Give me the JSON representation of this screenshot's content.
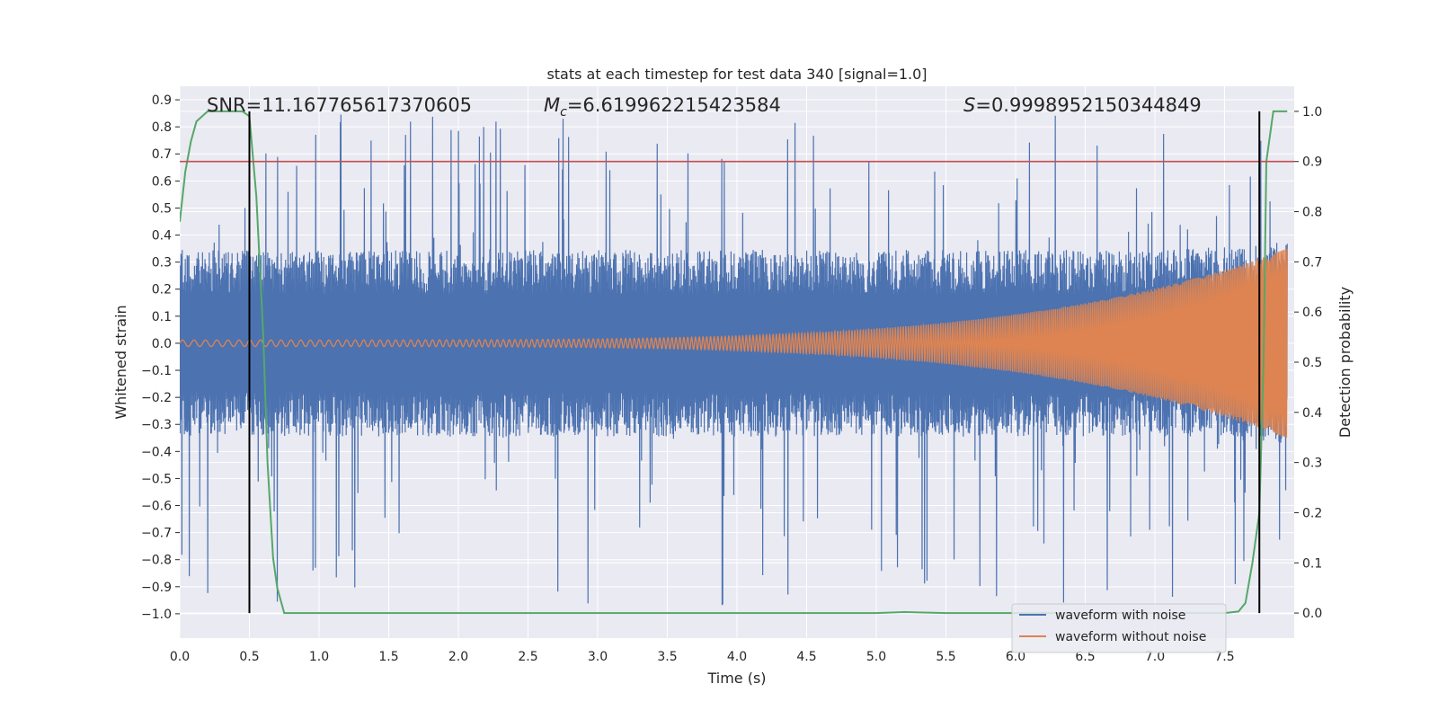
{
  "chart_data": {
    "type": "line",
    "title": "stats at each timestep for test data 340 [signal=1.0]",
    "xlabel": "Time (s)",
    "ylabel": "Whitened strain",
    "y2label": "Detection probability",
    "xlim": [
      0.0,
      8.0
    ],
    "ylim": [
      -1.09,
      0.95
    ],
    "y2lim": [
      -0.05,
      1.05
    ],
    "xticks": [
      "0.0",
      "0.5",
      "1.0",
      "1.5",
      "2.0",
      "2.5",
      "3.0",
      "3.5",
      "4.0",
      "4.5",
      "5.0",
      "5.5",
      "6.0",
      "6.5",
      "7.0",
      "7.5"
    ],
    "yticks": [
      "0.9",
      "0.8",
      "0.7",
      "0.6",
      "0.5",
      "0.4",
      "0.3",
      "0.2",
      "0.1",
      "0.0",
      "−0.1",
      "−0.2",
      "−0.3",
      "−0.4",
      "−0.5",
      "−0.6",
      "−0.7",
      "−0.8",
      "−0.9",
      "−1.0"
    ],
    "y2ticks": [
      "1.0",
      "0.9",
      "0.8",
      "0.7",
      "0.6",
      "0.5",
      "0.4",
      "0.3",
      "0.2",
      "0.1",
      "0.0"
    ],
    "annotations": {
      "snr": "SNR=11.167765617370605",
      "mc_symbol": "M",
      "mc_subscript": "c",
      "mc_value": "=6.619962215423584",
      "s_symbol": "S",
      "s_value": "=0.9998952150344849"
    },
    "grid": true,
    "legend": {
      "position": "lower-right"
    },
    "series": [
      {
        "name": "waveform with noise",
        "color": "#4c72b0",
        "axis": "left",
        "envelope": {
          "t": [
            0.0,
            1.0,
            2.0,
            3.0,
            4.0,
            5.0,
            6.0,
            7.0,
            7.4,
            7.6,
            7.8,
            7.95
          ],
          "upper": [
            0.3,
            0.3,
            0.3,
            0.3,
            0.3,
            0.3,
            0.3,
            0.3,
            0.31,
            0.31,
            0.32,
            0.33
          ],
          "lower": [
            -0.3,
            -0.3,
            -0.3,
            -0.3,
            -0.3,
            -0.3,
            -0.3,
            -0.3,
            -0.31,
            -0.31,
            -0.32,
            -0.33
          ],
          "peak_max": 0.86,
          "peak_min": -0.97
        }
      },
      {
        "name": "waveform without noise",
        "color": "#dd8452",
        "axis": "left",
        "chirp": {
          "t_start": 0.0,
          "t_end": 7.95,
          "amplitude_start": 0.012,
          "amplitude_end": 0.35,
          "frequency_start": 12,
          "frequency_end": 95
        }
      },
      {
        "name": "detection probability",
        "color": "#55a868",
        "axis": "right",
        "x": [
          0.0,
          0.04,
          0.08,
          0.12,
          0.2,
          0.3,
          0.4,
          0.45,
          0.5,
          0.55,
          0.6,
          0.63,
          0.67,
          0.7,
          0.75,
          1.0,
          2.0,
          3.0,
          4.0,
          5.0,
          5.2,
          5.5,
          6.0,
          7.0,
          7.5,
          7.6,
          7.65,
          7.7,
          7.75,
          7.78,
          7.8,
          7.85,
          7.9,
          7.95
        ],
        "y": [
          0.78,
          0.88,
          0.94,
          0.98,
          1.0,
          1.0,
          1.0,
          1.0,
          0.99,
          0.83,
          0.55,
          0.3,
          0.11,
          0.05,
          0.0,
          0.0,
          0.0,
          0.0,
          0.0,
          0.0,
          0.002,
          0.0,
          0.0,
          0.0,
          0.0,
          0.003,
          0.02,
          0.1,
          0.2,
          0.5,
          0.9,
          1.0,
          1.0,
          1.0
        ]
      }
    ],
    "threshold": {
      "value": 0.9,
      "axis": "right",
      "color": "#c44e52"
    },
    "vlines": [
      {
        "x": 0.5,
        "color": "#000000"
      },
      {
        "x": 7.75,
        "color": "#000000"
      }
    ]
  }
}
